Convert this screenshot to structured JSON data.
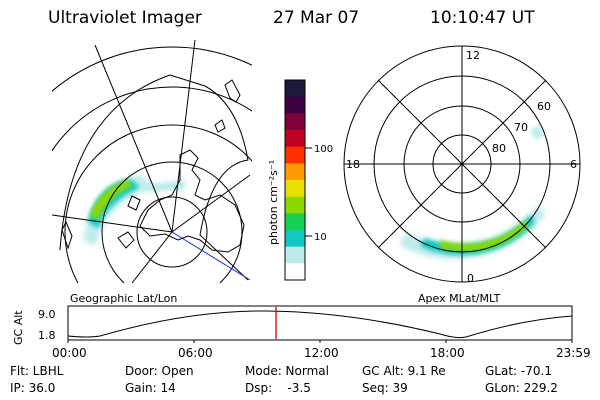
{
  "header": {
    "title": "Ultraviolet Imager",
    "date": "27 Mar 07",
    "time": "10:10:47 UT"
  },
  "left_panel": {
    "label": "Geographic Lat/Lon"
  },
  "right_panel": {
    "label": "Apex MLat/MLT",
    "mlt_labels": [
      "12",
      "6",
      "0",
      "18"
    ],
    "mlat_labels": [
      "60",
      "70",
      "80"
    ]
  },
  "colorbar": {
    "unit_label": "photon cm⁻²s⁻¹",
    "ticks": [
      "100",
      "10"
    ],
    "colors": [
      "#1a1a3a",
      "#400044",
      "#80003a",
      "#c00020",
      "#ff3000",
      "#ff9a00",
      "#e8e000",
      "#8ed800",
      "#18d050",
      "#10c8c0",
      "#bdebeb",
      "#ffffff"
    ]
  },
  "altitude_strip": {
    "axis_label": "GC Alt",
    "y_ticks": [
      "9.0",
      "1.8"
    ],
    "x_ticks": [
      "00:00",
      "06:00",
      "12:00",
      "18:00",
      "23:59"
    ],
    "marker_color": "#d00000"
  },
  "info_rows": [
    [
      "Flt: LBHL",
      "Door: Open",
      "Mode: Normal",
      "GC Alt: 9.1 Re",
      "GLat: -70.1"
    ],
    [
      "IP: 36.0",
      "Gain: 14",
      "Dsp:    -3.5",
      "Seq: 39",
      "GLon: 229.2"
    ]
  ]
}
